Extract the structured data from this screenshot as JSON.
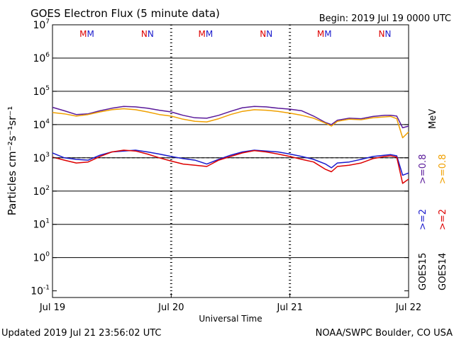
{
  "title": "GOES Electron Flux (5 minute data)",
  "begin": "Begin: 2019 Jul 19 0000 UTC",
  "updated": "Updated 2019 Jul 21 23:56:02 UTC",
  "credit": "NOAA/SWPC Boulder, CO USA",
  "xlabel": "Universal Time",
  "ylabel": "Particles cm⁻²s⁻¹sr⁻¹",
  "x_ticks": [
    "Jul 19",
    "Jul 20",
    "Jul 21",
    "Jul 22"
  ],
  "y_ticks": [
    {
      "exp": 7,
      "label": "10",
      "sup": "7"
    },
    {
      "exp": 6,
      "label": "10",
      "sup": "6"
    },
    {
      "exp": 5,
      "label": "10",
      "sup": "5"
    },
    {
      "exp": 4,
      "label": "10",
      "sup": "4"
    },
    {
      "exp": 3,
      "label": "10",
      "sup": "3"
    },
    {
      "exp": 2,
      "label": "10",
      "sup": "2"
    },
    {
      "exp": 1,
      "label": "10",
      "sup": "1"
    },
    {
      "exp": 0,
      "label": "10",
      "sup": "0"
    },
    {
      "exp": -1,
      "label": "10",
      "sup": "-1"
    }
  ],
  "legend": {
    "goes15": "GOES15",
    "goes14": "GOES14",
    "g15_p2": ">=2",
    "g15_p08": ">=0.8",
    "g14_p2": ">=2",
    "g14_p08": ">=0.8",
    "unit": "MeV"
  },
  "markers": [
    {
      "day": 0.29,
      "letters": "MM",
      "colors": [
        "#dd0000",
        "#1a1acc"
      ]
    },
    {
      "day": 0.8,
      "letters": "NN",
      "colors": [
        "#dd0000",
        "#1a1acc"
      ]
    },
    {
      "day": 1.29,
      "letters": "MM",
      "colors": [
        "#dd0000",
        "#1a1acc"
      ]
    },
    {
      "day": 1.8,
      "letters": "NN",
      "colors": [
        "#dd0000",
        "#1a1acc"
      ]
    },
    {
      "day": 2.29,
      "letters": "MM",
      "colors": [
        "#dd0000",
        "#1a1acc"
      ]
    },
    {
      "day": 2.8,
      "letters": "NN",
      "colors": [
        "#dd0000",
        "#1a1acc"
      ]
    }
  ],
  "colors": {
    "goes15_p08": "#5a1a9a",
    "goes14_p08": "#f0a000",
    "goes15_p2": "#1a1acc",
    "goes14_p2": "#dd0000",
    "threshold": "#000000"
  },
  "chart_data": {
    "type": "line",
    "title": "GOES Electron Flux (5 minute data)",
    "xlabel": "Universal Time",
    "ylabel": "Particles cm-2 s-1 sr-1",
    "x_unit": "days since 2019 Jul 19 0000 UTC",
    "xlim": [
      0,
      3
    ],
    "ylim_log10": [
      -1.2,
      7
    ],
    "y_scale": "log",
    "threshold": 1000,
    "series": [
      {
        "name": "GOES15 >=0.8 MeV",
        "color": "#5a1a9a",
        "x": [
          0,
          0.1,
          0.2,
          0.3,
          0.4,
          0.5,
          0.6,
          0.7,
          0.8,
          0.9,
          1.0,
          1.1,
          1.2,
          1.3,
          1.4,
          1.5,
          1.6,
          1.7,
          1.8,
          1.9,
          2.0,
          2.1,
          2.2,
          2.3,
          2.35,
          2.4,
          2.5,
          2.6,
          2.7,
          2.8,
          2.85,
          2.9,
          2.95,
          3.0
        ],
        "y": [
          33000,
          26000,
          20000,
          21000,
          26000,
          31000,
          35000,
          34000,
          31000,
          27000,
          24000,
          19000,
          16000,
          15500,
          19000,
          25000,
          32000,
          35000,
          34000,
          31000,
          29000,
          26000,
          18000,
          11500,
          10000,
          13500,
          15500,
          15000,
          17500,
          19000,
          19000,
          18000,
          8000,
          9000
        ]
      },
      {
        "name": "GOES14 >=0.8 MeV",
        "color": "#f0a000",
        "x": [
          0,
          0.1,
          0.2,
          0.3,
          0.4,
          0.5,
          0.6,
          0.7,
          0.8,
          0.9,
          1.0,
          1.1,
          1.2,
          1.3,
          1.4,
          1.5,
          1.6,
          1.7,
          1.8,
          1.9,
          2.0,
          2.1,
          2.2,
          2.3,
          2.35,
          2.4,
          2.5,
          2.6,
          2.7,
          2.8,
          2.85,
          2.9,
          2.95,
          3.0
        ],
        "y": [
          23000,
          21000,
          18000,
          20000,
          24000,
          28000,
          30000,
          28000,
          24000,
          20000,
          18000,
          14500,
          12500,
          12000,
          15000,
          20000,
          25000,
          28000,
          27000,
          25000,
          22000,
          19000,
          15500,
          11000,
          9000,
          12500,
          14500,
          14000,
          16000,
          17000,
          17500,
          15000,
          4000,
          6000
        ]
      },
      {
        "name": "GOES15 >=2 MeV",
        "color": "#1a1acc",
        "x": [
          0,
          0.1,
          0.2,
          0.3,
          0.4,
          0.5,
          0.6,
          0.7,
          0.8,
          0.9,
          1.0,
          1.1,
          1.2,
          1.3,
          1.4,
          1.5,
          1.6,
          1.7,
          1.8,
          1.9,
          2.0,
          2.1,
          2.2,
          2.3,
          2.35,
          2.4,
          2.5,
          2.6,
          2.7,
          2.8,
          2.85,
          2.9,
          2.95,
          3.0
        ],
        "y": [
          1400,
          1000,
          900,
          850,
          1200,
          1500,
          1600,
          1700,
          1500,
          1300,
          1100,
          950,
          850,
          650,
          900,
          1200,
          1500,
          1700,
          1600,
          1500,
          1300,
          1100,
          900,
          650,
          500,
          700,
          750,
          900,
          1100,
          1200,
          1250,
          1150,
          300,
          350
        ]
      },
      {
        "name": "GOES14 >=2 MeV",
        "color": "#dd0000",
        "x": [
          0,
          0.1,
          0.2,
          0.3,
          0.4,
          0.5,
          0.6,
          0.7,
          0.8,
          0.9,
          1.0,
          1.1,
          1.2,
          1.3,
          1.4,
          1.5,
          1.6,
          1.7,
          1.8,
          1.9,
          2.0,
          2.1,
          2.2,
          2.3,
          2.35,
          2.4,
          2.5,
          2.6,
          2.7,
          2.8,
          2.85,
          2.9,
          2.95,
          3.0
        ],
        "y": [
          1050,
          850,
          700,
          750,
          1100,
          1500,
          1700,
          1600,
          1300,
          1000,
          800,
          650,
          600,
          550,
          850,
          1100,
          1400,
          1650,
          1500,
          1300,
          1100,
          900,
          750,
          450,
          380,
          550,
          600,
          700,
          950,
          1100,
          1150,
          1050,
          170,
          230
        ]
      }
    ]
  }
}
